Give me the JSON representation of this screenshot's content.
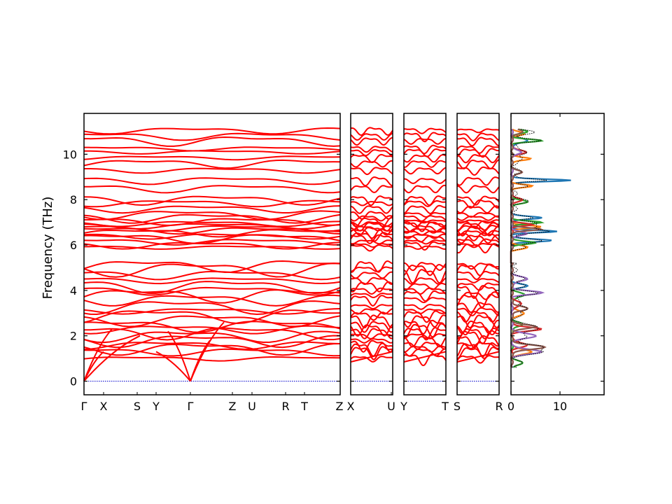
{
  "chart_data": {
    "type": "line",
    "title": "",
    "ylabel": "Frequency (THz)",
    "ylim": [
      -0.6,
      11.8
    ],
    "yticks": [
      "0",
      "2",
      "4",
      "6",
      "8",
      "10"
    ],
    "colors": {
      "bands": "#ff0000",
      "zero_line": "#0000cc",
      "dos_total": "#000000"
    },
    "band_panels": [
      {
        "labels": [
          "Γ",
          "X",
          "S",
          "Y",
          "Γ",
          "Z",
          "U",
          "R",
          "T",
          "Z"
        ]
      },
      {
        "labels": [
          "X",
          "U"
        ]
      },
      {
        "labels": [
          "Y",
          "T"
        ]
      },
      {
        "labels": [
          "S",
          "R"
        ]
      }
    ],
    "dos_panel": {
      "xlim": [
        0,
        19
      ],
      "xticks": [
        "0",
        "10"
      ],
      "series": [
        {
          "color": "#1f77b4",
          "peaks": [
            [
              0.3,
              1.5,
              0.15
            ],
            [
              4.2,
              3.0,
              0.08
            ],
            [
              6.2,
              8.0,
              0.06
            ],
            [
              6.6,
              9.0,
              0.05
            ],
            [
              7.2,
              6.0,
              0.06
            ],
            [
              8.85,
              12.0,
              0.05
            ],
            [
              10.6,
              3.0,
              0.1
            ]
          ]
        },
        {
          "color": "#ff7f0e",
          "peaks": [
            [
              1.3,
              4.0,
              0.1
            ],
            [
              3.0,
              2.5,
              0.1
            ],
            [
              5.9,
              3.0,
              0.08
            ],
            [
              6.8,
              6.0,
              0.06
            ],
            [
              8.6,
              4.0,
              0.06
            ],
            [
              9.8,
              4.0,
              0.06
            ],
            [
              10.9,
              2.5,
              0.08
            ]
          ]
        },
        {
          "color": "#2ca02c",
          "peaks": [
            [
              0.8,
              2.0,
              0.1
            ],
            [
              2.5,
              2.0,
              0.1
            ],
            [
              3.8,
              2.5,
              0.1
            ],
            [
              6.1,
              5.0,
              0.06
            ],
            [
              7.0,
              6.0,
              0.06
            ],
            [
              7.9,
              3.0,
              0.08
            ],
            [
              10.6,
              6.0,
              0.06
            ],
            [
              11.0,
              3.0,
              0.08
            ]
          ]
        },
        {
          "color": "#d62728",
          "peaks": [
            [
              1.6,
              3.0,
              0.1
            ],
            [
              2.3,
              6.0,
              0.08
            ],
            [
              3.4,
              2.0,
              0.1
            ],
            [
              6.9,
              4.0,
              0.06
            ],
            [
              8.0,
              2.0,
              0.08
            ],
            [
              10.1,
              3.0,
              0.08
            ]
          ]
        },
        {
          "color": "#9467bd",
          "peaks": [
            [
              1.3,
              6.0,
              0.1
            ],
            [
              2.0,
              5.0,
              0.1
            ],
            [
              3.9,
              6.0,
              0.08
            ],
            [
              4.5,
              3.0,
              0.1
            ],
            [
              6.5,
              3.0,
              0.08
            ],
            [
              10.1,
              2.0,
              0.08
            ]
          ]
        },
        {
          "color": "#8c564b",
          "peaks": [
            [
              1.5,
              6.5,
              0.1
            ],
            [
              2.4,
              5.0,
              0.08
            ],
            [
              3.2,
              3.0,
              0.1
            ],
            [
              6.7,
              6.0,
              0.06
            ],
            [
              9.2,
              2.0,
              0.08
            ],
            [
              11.0,
              2.0,
              0.1
            ]
          ]
        }
      ]
    }
  }
}
